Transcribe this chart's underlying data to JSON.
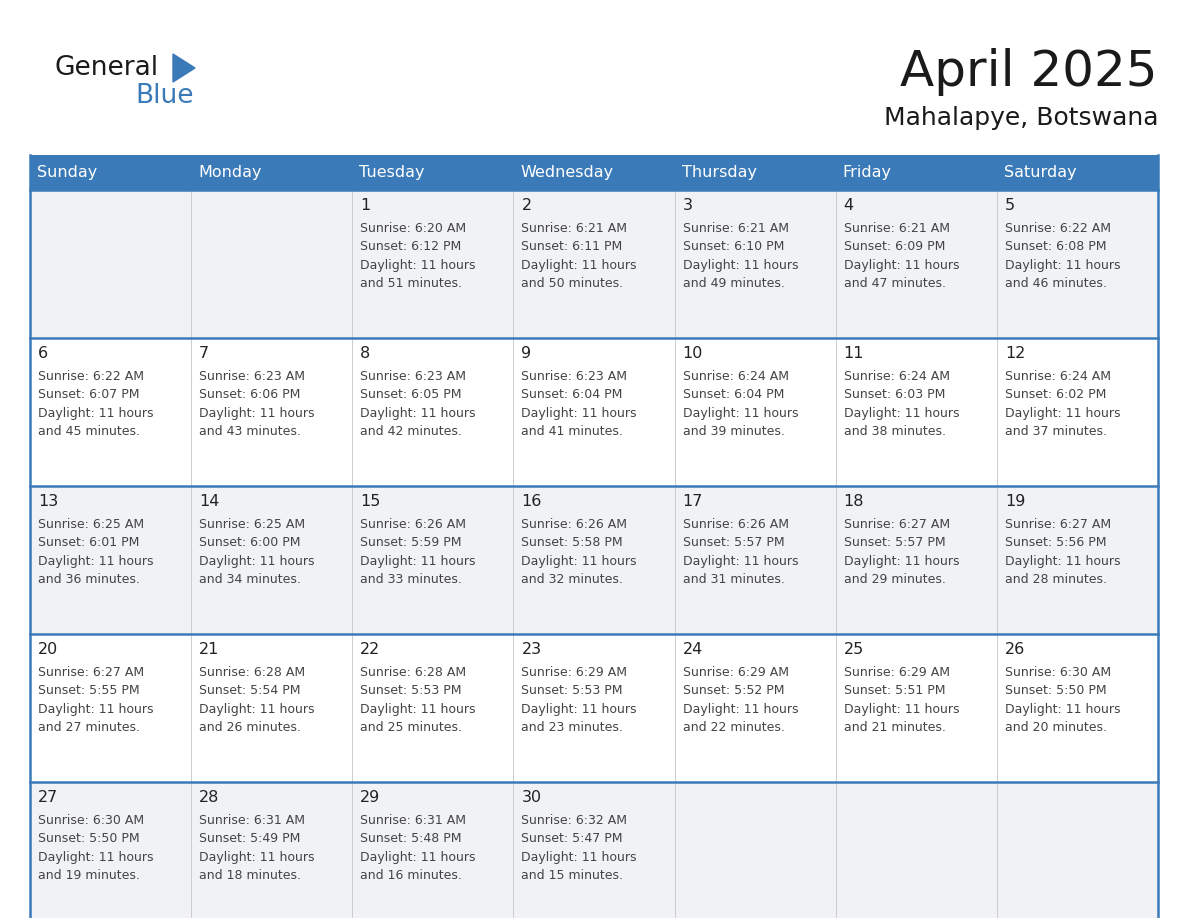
{
  "title": "April 2025",
  "subtitle": "Mahalapye, Botswana",
  "days_of_week": [
    "Sunday",
    "Monday",
    "Tuesday",
    "Wednesday",
    "Thursday",
    "Friday",
    "Saturday"
  ],
  "header_bg": "#3a7ab8",
  "header_text": "#ffffff",
  "cell_bg_light": "#f0f2f5",
  "cell_bg_white": "#ffffff",
  "cell_border_blue": "#3a7ab8",
  "cell_border_light": "#cccccc",
  "day_num_color": "#222222",
  "text_color": "#444444",
  "logo_general_color": "#1a1a1a",
  "logo_blue_color": "#3a7ab8",
  "title_color": "#1a1a1a",
  "calendar": [
    [
      {
        "day": "",
        "sunrise": "",
        "sunset": "",
        "daylight": ""
      },
      {
        "day": "",
        "sunrise": "",
        "sunset": "",
        "daylight": ""
      },
      {
        "day": "1",
        "sunrise": "6:20 AM",
        "sunset": "6:12 PM",
        "daylight": "11 hours and 51 minutes."
      },
      {
        "day": "2",
        "sunrise": "6:21 AM",
        "sunset": "6:11 PM",
        "daylight": "11 hours and 50 minutes."
      },
      {
        "day": "3",
        "sunrise": "6:21 AM",
        "sunset": "6:10 PM",
        "daylight": "11 hours and 49 minutes."
      },
      {
        "day": "4",
        "sunrise": "6:21 AM",
        "sunset": "6:09 PM",
        "daylight": "11 hours and 47 minutes."
      },
      {
        "day": "5",
        "sunrise": "6:22 AM",
        "sunset": "6:08 PM",
        "daylight": "11 hours and 46 minutes."
      }
    ],
    [
      {
        "day": "6",
        "sunrise": "6:22 AM",
        "sunset": "6:07 PM",
        "daylight": "11 hours and 45 minutes."
      },
      {
        "day": "7",
        "sunrise": "6:23 AM",
        "sunset": "6:06 PM",
        "daylight": "11 hours and 43 minutes."
      },
      {
        "day": "8",
        "sunrise": "6:23 AM",
        "sunset": "6:05 PM",
        "daylight": "11 hours and 42 minutes."
      },
      {
        "day": "9",
        "sunrise": "6:23 AM",
        "sunset": "6:04 PM",
        "daylight": "11 hours and 41 minutes."
      },
      {
        "day": "10",
        "sunrise": "6:24 AM",
        "sunset": "6:04 PM",
        "daylight": "11 hours and 39 minutes."
      },
      {
        "day": "11",
        "sunrise": "6:24 AM",
        "sunset": "6:03 PM",
        "daylight": "11 hours and 38 minutes."
      },
      {
        "day": "12",
        "sunrise": "6:24 AM",
        "sunset": "6:02 PM",
        "daylight": "11 hours and 37 minutes."
      }
    ],
    [
      {
        "day": "13",
        "sunrise": "6:25 AM",
        "sunset": "6:01 PM",
        "daylight": "11 hours and 36 minutes."
      },
      {
        "day": "14",
        "sunrise": "6:25 AM",
        "sunset": "6:00 PM",
        "daylight": "11 hours and 34 minutes."
      },
      {
        "day": "15",
        "sunrise": "6:26 AM",
        "sunset": "5:59 PM",
        "daylight": "11 hours and 33 minutes."
      },
      {
        "day": "16",
        "sunrise": "6:26 AM",
        "sunset": "5:58 PM",
        "daylight": "11 hours and 32 minutes."
      },
      {
        "day": "17",
        "sunrise": "6:26 AM",
        "sunset": "5:57 PM",
        "daylight": "11 hours and 31 minutes."
      },
      {
        "day": "18",
        "sunrise": "6:27 AM",
        "sunset": "5:57 PM",
        "daylight": "11 hours and 29 minutes."
      },
      {
        "day": "19",
        "sunrise": "6:27 AM",
        "sunset": "5:56 PM",
        "daylight": "11 hours and 28 minutes."
      }
    ],
    [
      {
        "day": "20",
        "sunrise": "6:27 AM",
        "sunset": "5:55 PM",
        "daylight": "11 hours and 27 minutes."
      },
      {
        "day": "21",
        "sunrise": "6:28 AM",
        "sunset": "5:54 PM",
        "daylight": "11 hours and 26 minutes."
      },
      {
        "day": "22",
        "sunrise": "6:28 AM",
        "sunset": "5:53 PM",
        "daylight": "11 hours and 25 minutes."
      },
      {
        "day": "23",
        "sunrise": "6:29 AM",
        "sunset": "5:53 PM",
        "daylight": "11 hours and 23 minutes."
      },
      {
        "day": "24",
        "sunrise": "6:29 AM",
        "sunset": "5:52 PM",
        "daylight": "11 hours and 22 minutes."
      },
      {
        "day": "25",
        "sunrise": "6:29 AM",
        "sunset": "5:51 PM",
        "daylight": "11 hours and 21 minutes."
      },
      {
        "day": "26",
        "sunrise": "6:30 AM",
        "sunset": "5:50 PM",
        "daylight": "11 hours and 20 minutes."
      }
    ],
    [
      {
        "day": "27",
        "sunrise": "6:30 AM",
        "sunset": "5:50 PM",
        "daylight": "11 hours and 19 minutes."
      },
      {
        "day": "28",
        "sunrise": "6:31 AM",
        "sunset": "5:49 PM",
        "daylight": "11 hours and 18 minutes."
      },
      {
        "day": "29",
        "sunrise": "6:31 AM",
        "sunset": "5:48 PM",
        "daylight": "11 hours and 16 minutes."
      },
      {
        "day": "30",
        "sunrise": "6:32 AM",
        "sunset": "5:47 PM",
        "daylight": "11 hours and 15 minutes."
      },
      {
        "day": "",
        "sunrise": "",
        "sunset": "",
        "daylight": ""
      },
      {
        "day": "",
        "sunrise": "",
        "sunset": "",
        "daylight": ""
      },
      {
        "day": "",
        "sunrise": "",
        "sunset": "",
        "daylight": ""
      }
    ]
  ]
}
